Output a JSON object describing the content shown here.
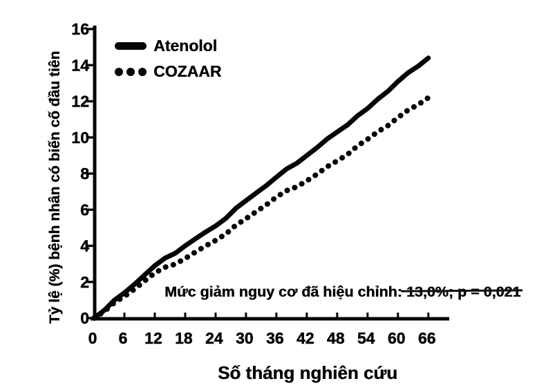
{
  "figure": {
    "background": "#ffffff",
    "ink_color": "#0b0b0b"
  },
  "chart_data": {
    "type": "line",
    "title": "",
    "xlabel": "Số tháng nghiên cứu",
    "ylabel": "Tỷ lệ (%) bệnh nhân có biến cố đầu tiên",
    "x": [
      0,
      6,
      12,
      18,
      24,
      30,
      36,
      42,
      48,
      54,
      60,
      66
    ],
    "series": [
      {
        "name": "Atenolol",
        "style": "solid",
        "values": [
          0,
          1.4,
          2.9,
          4.0,
          5.1,
          6.5,
          7.8,
          9.0,
          10.3,
          11.6,
          13.1,
          14.4
        ]
      },
      {
        "name": "COZAAR",
        "style": "dotted",
        "values": [
          0,
          1.2,
          2.5,
          3.3,
          4.3,
          5.5,
          6.7,
          7.6,
          8.7,
          9.9,
          11.1,
          12.2
        ]
      }
    ],
    "x_ticks": [
      0,
      6,
      12,
      18,
      24,
      30,
      36,
      42,
      48,
      54,
      60,
      66
    ],
    "y_ticks": [
      0,
      2,
      4,
      6,
      8,
      10,
      12,
      14,
      16
    ],
    "xlim": [
      0,
      66
    ],
    "ylim": [
      0,
      16
    ],
    "grid": false,
    "legend_position": "top-left-inside",
    "annotation": {
      "prefix": "Mức giảm nguy cơ đã hiệu chỉnh: ",
      "value": "13,0%; p = 0,021",
      "full_text": "Mức giảm nguy cơ đã hiệu chỉnh: 13,0%; p = 0,021"
    }
  }
}
